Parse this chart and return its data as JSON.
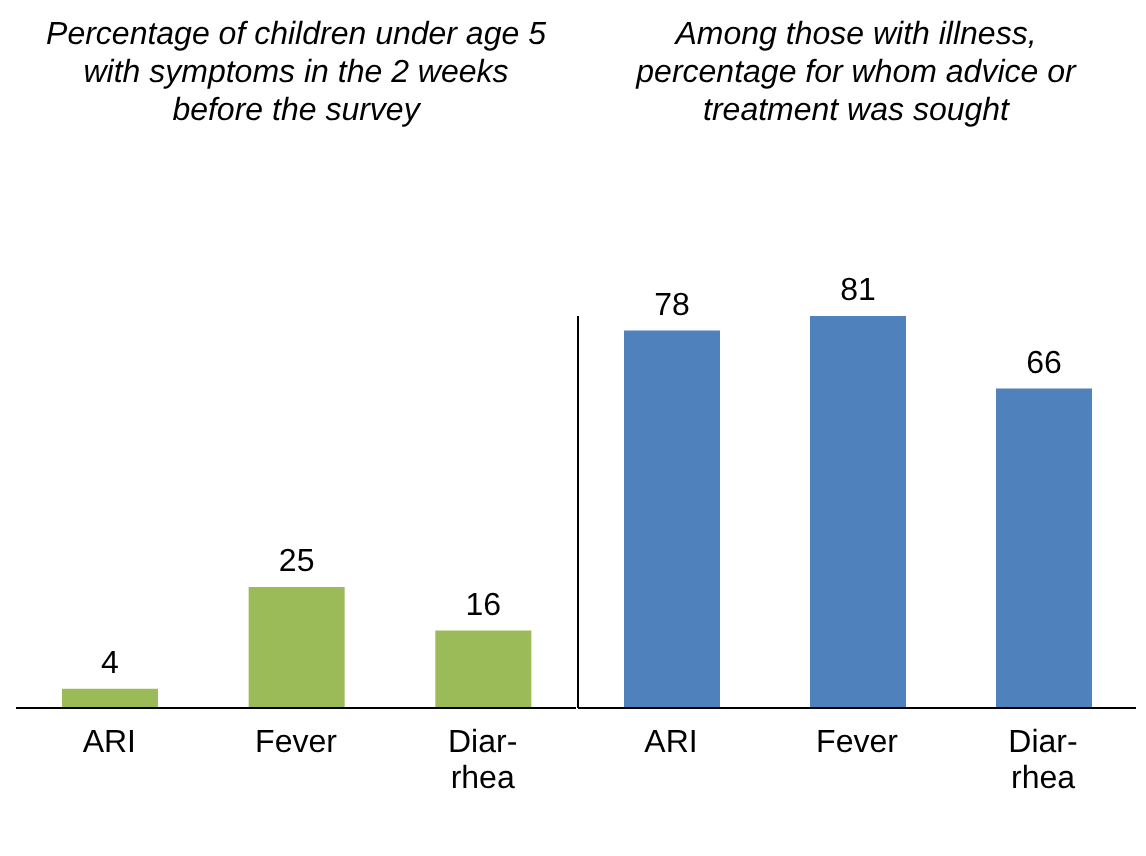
{
  "chart_data": [
    {
      "type": "bar",
      "title": "Percentage of children under age 5 with symptoms in the 2 weeks before the survey",
      "categories": [
        "ARI",
        "Fever",
        "Diar-\nrhea"
      ],
      "values": [
        4,
        25,
        16
      ],
      "color": "#9bbb59",
      "data_labels": true
    },
    {
      "type": "bar",
      "title": "Among those with illness, percentage for whom advice or treatment was sought",
      "categories": [
        "ARI",
        "Fever",
        "Diar-\nrhea"
      ],
      "values": [
        78,
        81,
        66
      ],
      "color": "#4f81bd",
      "data_labels": true
    }
  ]
}
